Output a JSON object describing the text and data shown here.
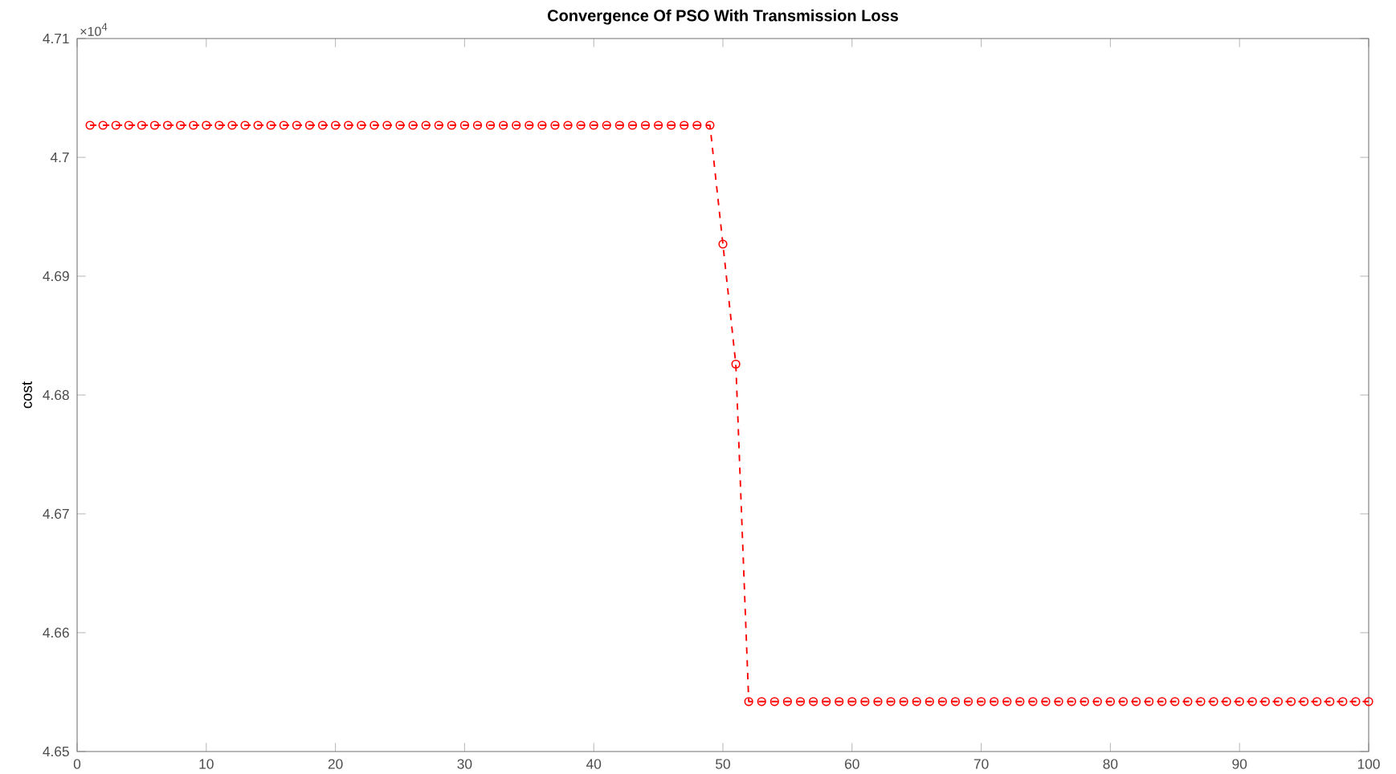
{
  "chart_data": {
    "type": "line",
    "title": "Convergence Of PSO With Transmission Loss",
    "ylabel": "cost",
    "annotations": [
      "×10$^{4}$"
    ],
    "x": [
      1,
      2,
      3,
      4,
      5,
      6,
      7,
      8,
      9,
      10,
      11,
      12,
      13,
      14,
      15,
      16,
      17,
      18,
      19,
      20,
      21,
      22,
      23,
      24,
      25,
      26,
      27,
      28,
      29,
      30,
      31,
      32,
      33,
      34,
      35,
      36,
      37,
      38,
      39,
      40,
      41,
      42,
      43,
      44,
      45,
      46,
      47,
      48,
      49,
      50,
      51,
      52,
      53,
      54,
      55,
      56,
      57,
      58,
      59,
      60,
      61,
      62,
      63,
      64,
      65,
      66,
      67,
      68,
      69,
      70,
      71,
      72,
      73,
      74,
      75,
      76,
      77,
      78,
      79,
      80,
      81,
      82,
      83,
      84,
      85,
      86,
      87,
      88,
      89,
      90,
      91,
      92,
      93,
      94,
      95,
      96,
      97,
      98,
      99,
      100
    ],
    "series": [
      {
        "color": "#ff0000",
        "values": [
          4.7027,
          4.7027,
          4.7027,
          4.7027,
          4.7027,
          4.7027,
          4.7027,
          4.7027,
          4.7027,
          4.7027,
          4.7027,
          4.7027,
          4.7027,
          4.7027,
          4.7027,
          4.7027,
          4.7027,
          4.7027,
          4.7027,
          4.7027,
          4.7027,
          4.7027,
          4.7027,
          4.7027,
          4.7027,
          4.7027,
          4.7027,
          4.7027,
          4.7027,
          4.7027,
          4.7027,
          4.7027,
          4.7027,
          4.7027,
          4.7027,
          4.7027,
          4.7027,
          4.7027,
          4.7027,
          4.7027,
          4.7027,
          4.7027,
          4.7027,
          4.7027,
          4.7027,
          4.7027,
          4.7027,
          4.7027,
          4.7027,
          4.6927,
          4.6826,
          4.6542,
          4.6542,
          4.6542,
          4.6542,
          4.6542,
          4.6542,
          4.6542,
          4.6542,
          4.6542,
          4.6542,
          4.6542,
          4.6542,
          4.6542,
          4.6542,
          4.6542,
          4.6542,
          4.6542,
          4.6542,
          4.6542,
          4.6542,
          4.6542,
          4.6542,
          4.6542,
          4.6542,
          4.6542,
          4.6542,
          4.6542,
          4.6542,
          4.6542,
          4.6542,
          4.6542,
          4.6542,
          4.6542,
          4.6542,
          4.6542,
          4.6542,
          4.6542,
          4.6542,
          4.6542,
          4.6542,
          4.6542,
          4.6542,
          4.6542,
          4.6542,
          4.6542,
          4.6542,
          4.6542,
          4.6542,
          4.6542
        ]
      }
    ],
    "xlim": [
      0,
      100
    ],
    "ylim": [
      4.65,
      4.71
    ],
    "xticks": [
      0,
      10,
      20,
      30,
      40,
      50,
      60,
      70,
      80,
      90,
      100
    ],
    "yticks": [
      4.65,
      4.66,
      4.67,
      4.68,
      4.69,
      4.7,
      4.71
    ],
    "marker": "circle",
    "line_style": "dashed"
  }
}
